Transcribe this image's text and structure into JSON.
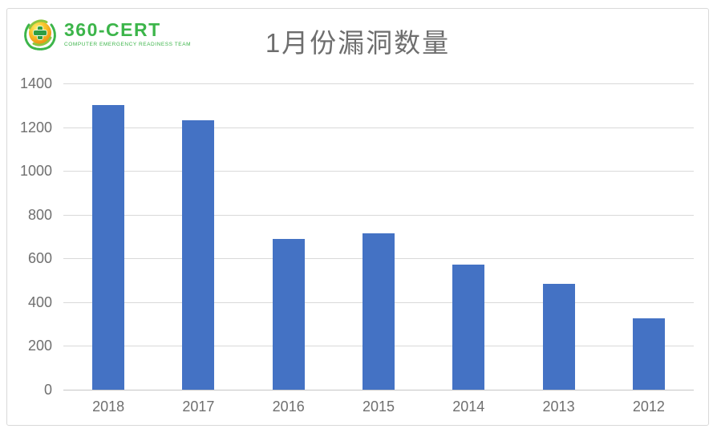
{
  "logo": {
    "brand": "360-CERT",
    "tagline": "COMPUTER EMERGENCY READINESS TEAM",
    "brand_color": "#3cb54a"
  },
  "chart_data": {
    "type": "bar",
    "title": "1月份漏洞数量",
    "categories": [
      "2018",
      "2017",
      "2016",
      "2015",
      "2014",
      "2013",
      "2012"
    ],
    "values": [
      1300,
      1230,
      690,
      715,
      570,
      485,
      325
    ],
    "xlabel": "",
    "ylabel": "",
    "ylim": [
      0,
      1400
    ],
    "yticks": [
      0,
      200,
      400,
      600,
      800,
      1000,
      1200,
      1400
    ],
    "grid": true,
    "legend": "none",
    "bar_color": "#4472c4",
    "title_color": "#6e6e6e",
    "tick_color": "#6f6f6f",
    "gridline_color": "#d9d9d9"
  }
}
